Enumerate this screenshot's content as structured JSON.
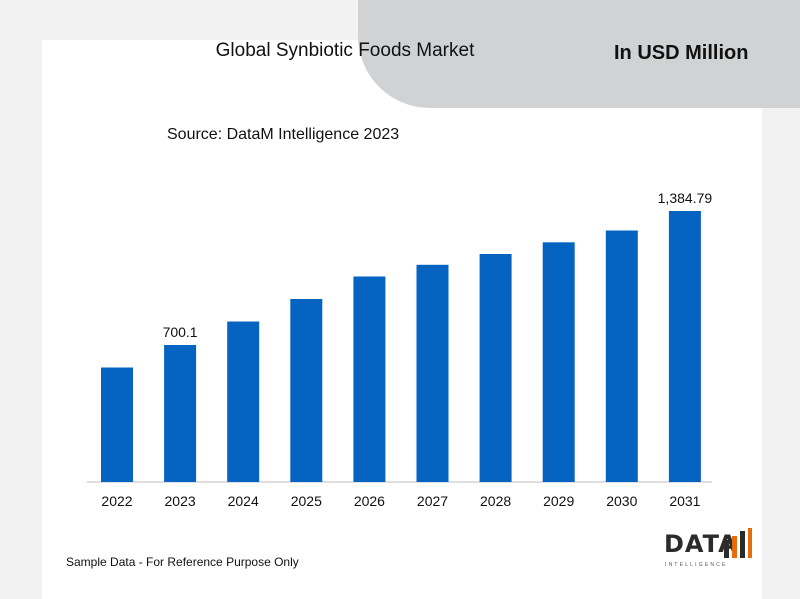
{
  "header": {
    "title": "Global Synbiotic Foods Market",
    "unit_label": "In USD Million"
  },
  "source": "Source: DataM Intelligence 2023",
  "footer_note": "Sample Data - For Reference Purpose Only",
  "logo": {
    "word": "DATA",
    "sub": "INTELLIGENCE"
  },
  "colors": {
    "bar": "#0563c1",
    "banner": "#d0d2d4",
    "axis": "#bfbfbf"
  },
  "chart_data": {
    "type": "bar",
    "categories": [
      "2022",
      "2023",
      "2024",
      "2025",
      "2026",
      "2027",
      "2028",
      "2029",
      "2030",
      "2031"
    ],
    "values": [
      585,
      700.1,
      820,
      935,
      1050,
      1110,
      1165,
      1225,
      1285,
      1384.79
    ],
    "data_labels": [
      "",
      "700.1",
      "",
      "",
      "",
      "",
      "",
      "",
      "",
      "1,384.79"
    ],
    "title": "Global Synbiotic Foods Market",
    "xlabel": "",
    "ylabel": "",
    "ylim": [
      0,
      1384.79
    ],
    "grid": false,
    "legend": "none"
  }
}
